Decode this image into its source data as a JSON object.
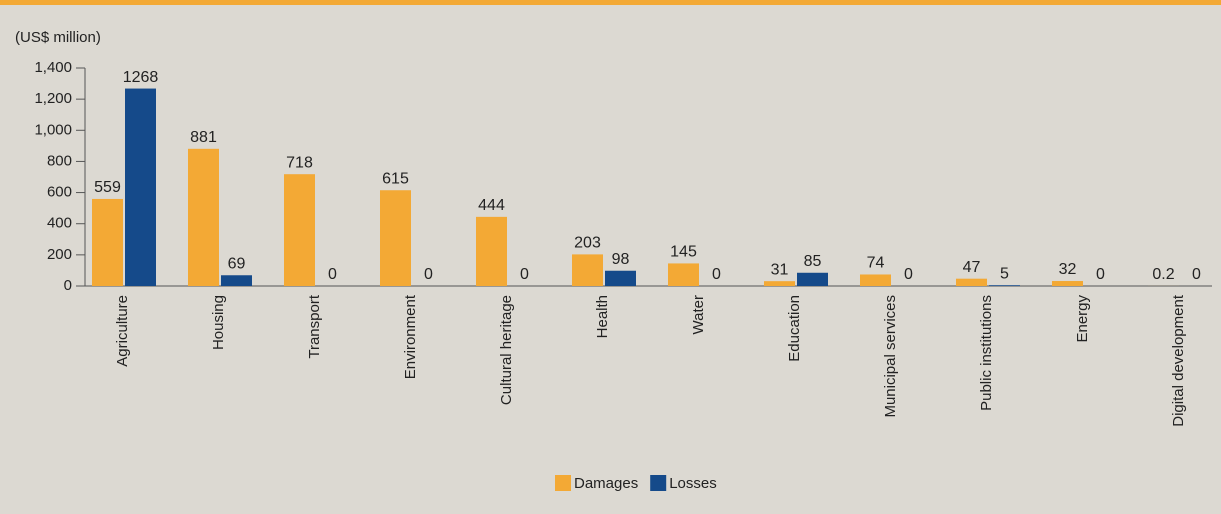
{
  "chart_data": {
    "type": "bar",
    "y_axis_label": "(US$ million)",
    "categories": [
      "Agriculture",
      "Housing",
      "Transport",
      "Environment",
      "Cultural heritage",
      "Health",
      "Water",
      "Education",
      "Municipal services",
      "Public institutions",
      "Energy",
      "Digital development"
    ],
    "series": [
      {
        "name": "Damages",
        "color": "#f3a935",
        "values": [
          559,
          881,
          718,
          615,
          444,
          203,
          145,
          31,
          74,
          47,
          32,
          0.2
        ]
      },
      {
        "name": "Losses",
        "color": "#154a8a",
        "values": [
          1268,
          69,
          0,
          0,
          0,
          98,
          0,
          85,
          0,
          5,
          0,
          0
        ]
      }
    ],
    "ylim": [
      0,
      1400
    ],
    "yticks": [
      0,
      200,
      400,
      600,
      800,
      {
        "value": 1000,
        "label": "1,000"
      },
      {
        "value": 1200,
        "label": "1,200"
      },
      {
        "value": 1400,
        "label": "1,400"
      }
    ],
    "legend": "bottom"
  }
}
